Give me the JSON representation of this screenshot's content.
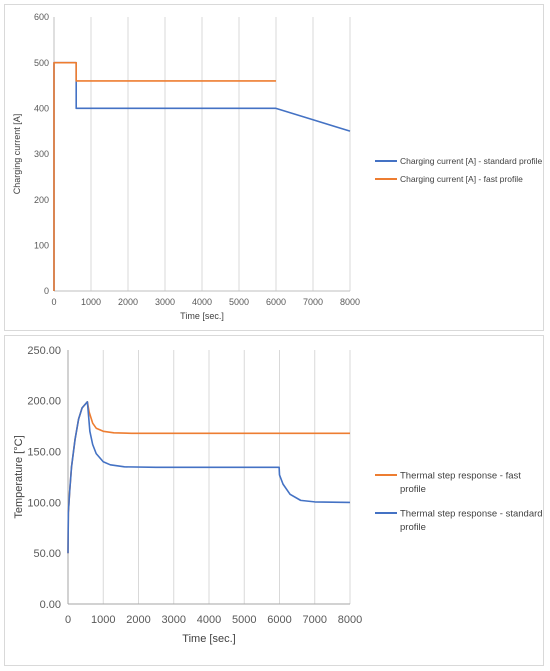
{
  "chart_data": [
    {
      "type": "line",
      "title": "",
      "xlabel": "Time [sec.]",
      "ylabel": "Charging current [A]",
      "xlim": [
        0,
        8000
      ],
      "ylim": [
        0,
        600
      ],
      "xticks": [
        0,
        1000,
        2000,
        3000,
        4000,
        5000,
        6000,
        7000,
        8000
      ],
      "yticks": [
        0,
        100,
        200,
        300,
        400,
        500,
        600
      ],
      "xtick_labels": [
        "0",
        "1000",
        "2000",
        "3000",
        "4000",
        "5000",
        "6000",
        "7000",
        "8000"
      ],
      "ytick_labels": [
        "0",
        "100",
        "200",
        "300",
        "400",
        "500",
        "600"
      ],
      "grid": "vertical",
      "legend_position": "right",
      "series": [
        {
          "name": "Charging current [A] - standard profile",
          "color": "#4472c4",
          "points": [
            [
              0,
              0
            ],
            [
              0,
              500
            ],
            [
              600,
              500
            ],
            [
              600,
              400
            ],
            [
              6000,
              400
            ],
            [
              7000,
              375
            ],
            [
              8000,
              350
            ]
          ]
        },
        {
          "name": "Charging current [A] - fast profile",
          "color": "#ed7d31",
          "points": [
            [
              0,
              0
            ],
            [
              0,
              500
            ],
            [
              600,
              500
            ],
            [
              600,
              460
            ],
            [
              6000,
              460
            ]
          ]
        }
      ]
    },
    {
      "type": "line",
      "title": "",
      "xlabel": "Time [sec.]",
      "ylabel": "Temperature [°C]",
      "xlim": [
        0,
        8000
      ],
      "ylim": [
        0,
        250
      ],
      "xticks": [
        0,
        1000,
        2000,
        3000,
        4000,
        5000,
        6000,
        7000,
        8000
      ],
      "yticks": [
        0,
        50,
        100,
        150,
        200,
        250
      ],
      "xtick_labels": [
        "0",
        "1000",
        "2000",
        "3000",
        "4000",
        "5000",
        "6000",
        "7000",
        "8000"
      ],
      "ytick_labels": [
        "0.00",
        "50.00",
        "100.00",
        "150.00",
        "200.00",
        "250.00"
      ],
      "grid": "vertical",
      "legend_position": "right",
      "series": [
        {
          "name": "Thermal step response - fast profile",
          "color": "#ed7d31",
          "points": [
            [
              0,
              50
            ],
            [
              10,
              90
            ],
            [
              50,
              112
            ],
            [
              100,
              135
            ],
            [
              200,
              162
            ],
            [
              300,
              182
            ],
            [
              400,
              193
            ],
            [
              550,
              199
            ],
            [
              600,
              189
            ],
            [
              700,
              178
            ],
            [
              800,
              173
            ],
            [
              1000,
              170
            ],
            [
              1300,
              168.5
            ],
            [
              1800,
              168
            ],
            [
              8000,
              168
            ]
          ]
        },
        {
          "name": "Thermal step response - standard profile",
          "color": "#4472c4",
          "points": [
            [
              0,
              50
            ],
            [
              10,
              90
            ],
            [
              50,
              112
            ],
            [
              100,
              135
            ],
            [
              200,
              162
            ],
            [
              300,
              182
            ],
            [
              400,
              193
            ],
            [
              550,
              199
            ],
            [
              620,
              170
            ],
            [
              700,
              157
            ],
            [
              800,
              148
            ],
            [
              1000,
              140
            ],
            [
              1200,
              137
            ],
            [
              1600,
              135
            ],
            [
              2500,
              134.5
            ],
            [
              5990,
              134.5
            ],
            [
              6000,
              127
            ],
            [
              6100,
              118
            ],
            [
              6300,
              108
            ],
            [
              6600,
              102
            ],
            [
              7000,
              100.5
            ],
            [
              8000,
              100
            ]
          ]
        }
      ]
    }
  ]
}
